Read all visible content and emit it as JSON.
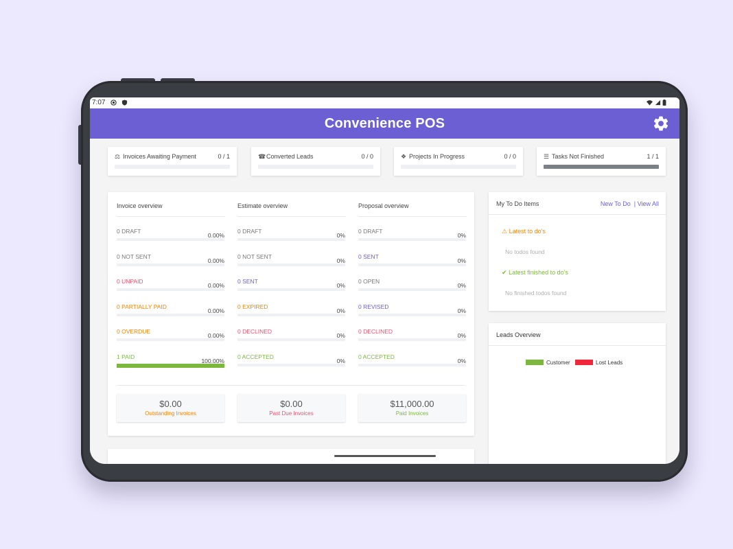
{
  "statusbar": {
    "time": "7:07"
  },
  "app": {
    "title": "Convenience POS"
  },
  "stats": [
    {
      "label": "Invoices Awaiting Payment",
      "value": "0 / 1",
      "progress": 0.0,
      "icon": "balance-scale-icon"
    },
    {
      "label": "Converted Leads",
      "value": "0 / 0",
      "progress": 0.0,
      "icon": "tty-icon"
    },
    {
      "label": "Projects In Progress",
      "value": "0 / 0",
      "progress": 0.0,
      "icon": "cubes-icon"
    },
    {
      "label": "Tasks Not Finished",
      "value": "1 / 1",
      "progress": 1.0,
      "icon": "list-icon"
    }
  ],
  "invoice": {
    "title": "Invoice overview",
    "rows": [
      {
        "label": "0 DRAFT",
        "percent": "0.00%",
        "value": 0,
        "color": "#777777"
      },
      {
        "label": "0 NOT SENT",
        "percent": "0.00%",
        "value": 0,
        "color": "#777777"
      },
      {
        "label": "0 UNPAID",
        "percent": "0.00%",
        "value": 0,
        "color": "#f0506e"
      },
      {
        "label": "0 PARTIALLY PAID",
        "percent": "0.00%",
        "value": 0,
        "color": "#f0850c"
      },
      {
        "label": "0 OVERDUE",
        "percent": "0.00%",
        "value": 0,
        "color": "#f0850c"
      },
      {
        "label": "1 PAID",
        "percent": "100.00%",
        "value": 100,
        "color": "#7cb83d"
      }
    ]
  },
  "estimate": {
    "title": "Estimate overview",
    "rows": [
      {
        "label": "0 DRAFT",
        "percent": "0%",
        "value": 0,
        "color": "#777777"
      },
      {
        "label": "0 NOT SENT",
        "percent": "0%",
        "value": 0,
        "color": "#777777"
      },
      {
        "label": "0 SENT",
        "percent": "0%",
        "value": 0,
        "color": "#6b5fd3"
      },
      {
        "label": "0 EXPIRED",
        "percent": "0%",
        "value": 0,
        "color": "#f0850c"
      },
      {
        "label": "0 DECLINED",
        "percent": "0%",
        "value": 0,
        "color": "#f0506e"
      },
      {
        "label": "0 ACCEPTED",
        "percent": "0%",
        "value": 0,
        "color": "#7cb83d"
      }
    ]
  },
  "proposal": {
    "title": "Proposal overview",
    "rows": [
      {
        "label": "0 DRAFT",
        "percent": "0%",
        "value": 0,
        "color": "#777777"
      },
      {
        "label": "0 SENT",
        "percent": "0%",
        "value": 0,
        "color": "#6b5fd3"
      },
      {
        "label": "0 OPEN",
        "percent": "0%",
        "value": 0,
        "color": "#777777"
      },
      {
        "label": "0 REVISED",
        "percent": "0%",
        "value": 0,
        "color": "#6b5fd3"
      },
      {
        "label": "0 DECLINED",
        "percent": "0%",
        "value": 0,
        "color": "#f0506e"
      },
      {
        "label": "0 ACCEPTED",
        "percent": "0%",
        "value": 0,
        "color": "#7cb83d"
      }
    ]
  },
  "totals": [
    {
      "amount": "$0.00",
      "caption": "Outstanding Invoices",
      "color": "#f0850c"
    },
    {
      "amount": "$0.00",
      "caption": "Past Due Invoices",
      "color": "#f0506e"
    },
    {
      "amount": "$11,000.00",
      "caption": "Paid Invoices",
      "color": "#7cb83d"
    }
  ],
  "todo": {
    "title": "My To Do Items",
    "new_link": "New To Do",
    "separator": "|",
    "view_all": "View All",
    "latest_title": "Latest to do's",
    "latest_empty": "No todos found",
    "finished_title": "Latest finished to do's",
    "finished_empty": "No finished todos found"
  },
  "leads": {
    "title": "Leads Overview",
    "legend": [
      {
        "name": "Customer",
        "color": "#7cb83d"
      },
      {
        "name": "Lost Leads",
        "color": "#f0283c"
      }
    ]
  },
  "colors": {
    "accent": "#6b5fd3",
    "progress_fill": "#7b8087"
  }
}
